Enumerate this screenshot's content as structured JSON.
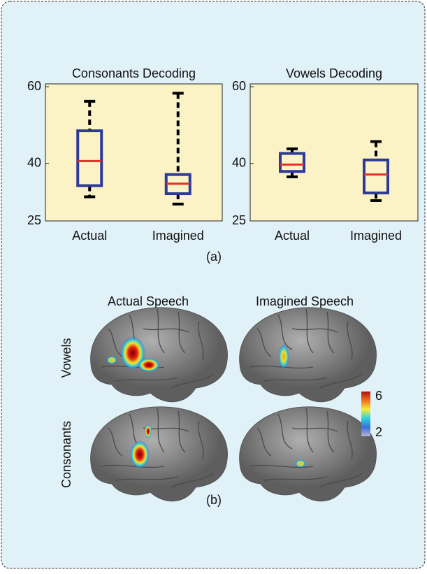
{
  "chart_data": [
    {
      "type": "box",
      "title": "Consonants Decoding",
      "categories": [
        "Actual",
        "Imagined"
      ],
      "boxes": [
        {
          "min": 31.3,
          "q1": 34.2,
          "median": 40.6,
          "q3": 48.5,
          "max": 56.2
        },
        {
          "min": 29.4,
          "q1": 32.1,
          "median": 34.7,
          "q3": 37.1,
          "max": 58.3
        }
      ],
      "ylim": [
        25,
        60
      ],
      "yticks": [
        25,
        40,
        60
      ],
      "box_color": "#2e3a96",
      "median_color": "#e2302a",
      "background": "#fbf3c6"
    },
    {
      "type": "box",
      "title": "Vowels Decoding",
      "categories": [
        "Actual",
        "Imagined"
      ],
      "boxes": [
        {
          "min": 36.5,
          "q1": 37.9,
          "median": 39.7,
          "q3": 42.6,
          "max": 43.8
        },
        {
          "min": 30.3,
          "q1": 32.3,
          "median": 37.1,
          "q3": 40.9,
          "max": 45.7
        }
      ],
      "ylim": [
        25,
        60
      ],
      "yticks": [
        25,
        40,
        60
      ],
      "box_color": "#2e3a96",
      "median_color": "#e2302a",
      "background": "#fbf3c6"
    }
  ],
  "panel_a": "(a)",
  "panel_b": "(b)",
  "brains": {
    "columns": [
      "Actual Speech",
      "Imagined Speech"
    ],
    "rows": [
      "Vowels",
      "Consonants"
    ],
    "colorbar": {
      "max": 6,
      "min": 2
    }
  }
}
